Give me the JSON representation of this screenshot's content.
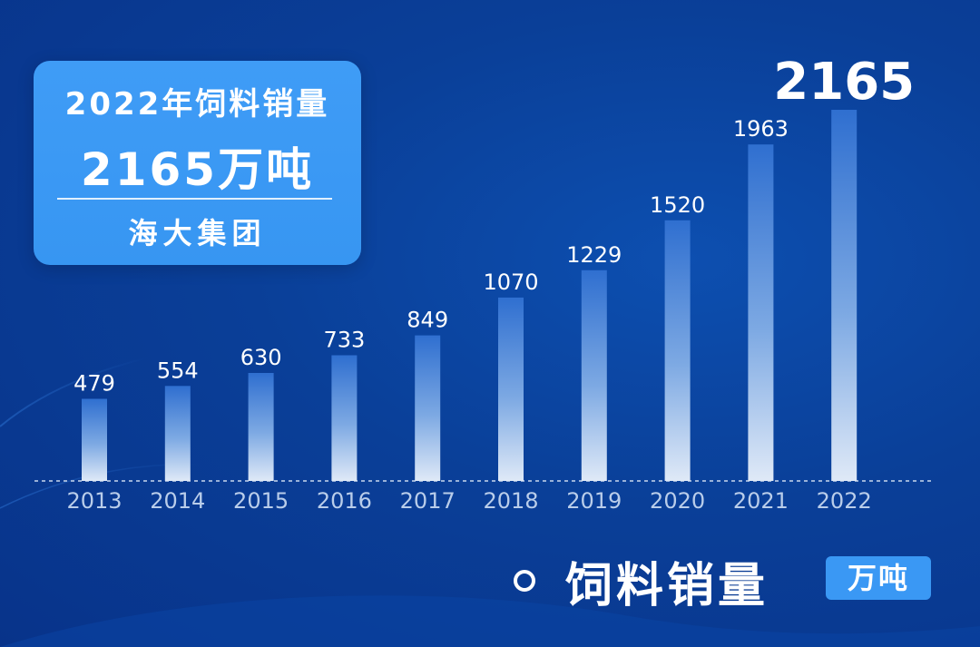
{
  "info_box": {
    "title": "2022年饲料销量",
    "value": "2165万吨",
    "company": "海大集团"
  },
  "legend": {
    "label": "饲料销量",
    "unit": "万吨"
  },
  "colors": {
    "background": "#0a3f98",
    "accent": "#3a98f4",
    "text": "#ffffff",
    "axis_label": "#b9cdea"
  },
  "chart_data": {
    "type": "bar",
    "categories": [
      "2013",
      "2014",
      "2015",
      "2016",
      "2017",
      "2018",
      "2019",
      "2020",
      "2021",
      "2022"
    ],
    "values": [
      479,
      554,
      630,
      733,
      849,
      1070,
      1229,
      1520,
      1963,
      2165
    ],
    "highlight_index": 9,
    "title": "",
    "xlabel": "",
    "ylabel": "",
    "unit": "万吨",
    "ylim": [
      0,
      2165
    ],
    "grid": false,
    "baseline": "dashed"
  }
}
